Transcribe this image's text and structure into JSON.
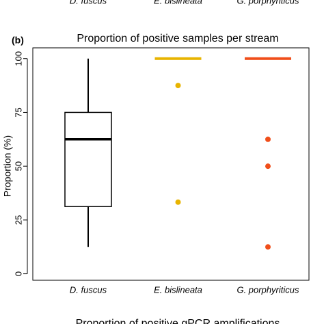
{
  "chart_data": {
    "type": "box",
    "panel_label": "(b)",
    "title": "Proportion of positive samples per stream",
    "y_label": "Proportion (%)",
    "categories": [
      "D. fuscus",
      "E. bislineata",
      "G. porphyriticus"
    ],
    "series": [
      {
        "name": "D. fuscus",
        "color": "#000000",
        "min": 12.5,
        "q1": 31.25,
        "median": 62.5,
        "q3": 75,
        "max": 100,
        "outliers": []
      },
      {
        "name": "E. bislineata",
        "color": "#e8b400",
        "min": 100,
        "q1": 100,
        "median": 100,
        "q3": 100,
        "max": 100,
        "outliers": [
          87.5,
          33.3
        ]
      },
      {
        "name": "G. porphyriticus",
        "color": "#f04e1a",
        "min": 100,
        "q1": 100,
        "median": 100,
        "q3": 100,
        "max": 100,
        "outliers": [
          62.5,
          50,
          12.5
        ]
      }
    ],
    "ylim": [
      -3,
      105
    ],
    "yticks": [
      0,
      25,
      50,
      75,
      100
    ],
    "previous_panel_labels": [
      "D. fuscus",
      "E. bislineata",
      "G. porphyriticus"
    ],
    "next_panel_title": "Proportion of positive qPCR amplifications"
  }
}
